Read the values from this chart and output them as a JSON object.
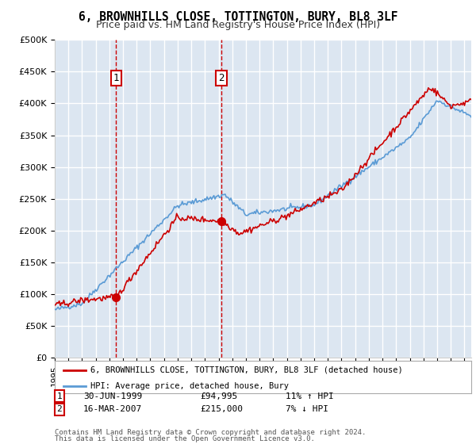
{
  "title": "6, BROWNHILLS CLOSE, TOTTINGTON, BURY, BL8 3LF",
  "subtitle": "Price paid vs. HM Land Registry's House Price Index (HPI)",
  "ylim": [
    0,
    500000
  ],
  "yticks": [
    0,
    50000,
    100000,
    150000,
    200000,
    250000,
    300000,
    350000,
    400000,
    450000,
    500000
  ],
  "ytick_labels": [
    "£0",
    "£50K",
    "£100K",
    "£150K",
    "£200K",
    "£250K",
    "£300K",
    "£350K",
    "£400K",
    "£450K",
    "£500K"
  ],
  "xlim_start": 1995.0,
  "xlim_end": 2025.5,
  "legend_label_red": "6, BROWNHILLS CLOSE, TOTTINGTON, BURY, BL8 3LF (detached house)",
  "legend_label_blue": "HPI: Average price, detached house, Bury",
  "table_entries": [
    {
      "num": 1,
      "date": "30-JUN-1999",
      "price": "£94,995",
      "hpi": "11% ↑ HPI"
    },
    {
      "num": 2,
      "date": "16-MAR-2007",
      "price": "£215,000",
      "hpi": "7% ↓ HPI"
    }
  ],
  "footnote1": "Contains HM Land Registry data © Crown copyright and database right 2024.",
  "footnote2": "This data is licensed under the Open Government Licence v3.0.",
  "sale1_x": 1999.5,
  "sale1_y": 94995,
  "sale2_x": 2007.21,
  "sale2_y": 215000,
  "red_color": "#cc0000",
  "blue_color": "#5b9bd5",
  "bg_color": "#dce6f1",
  "grid_color": "#ffffff",
  "vline_color": "#cc0000",
  "box_color": "#cc0000"
}
